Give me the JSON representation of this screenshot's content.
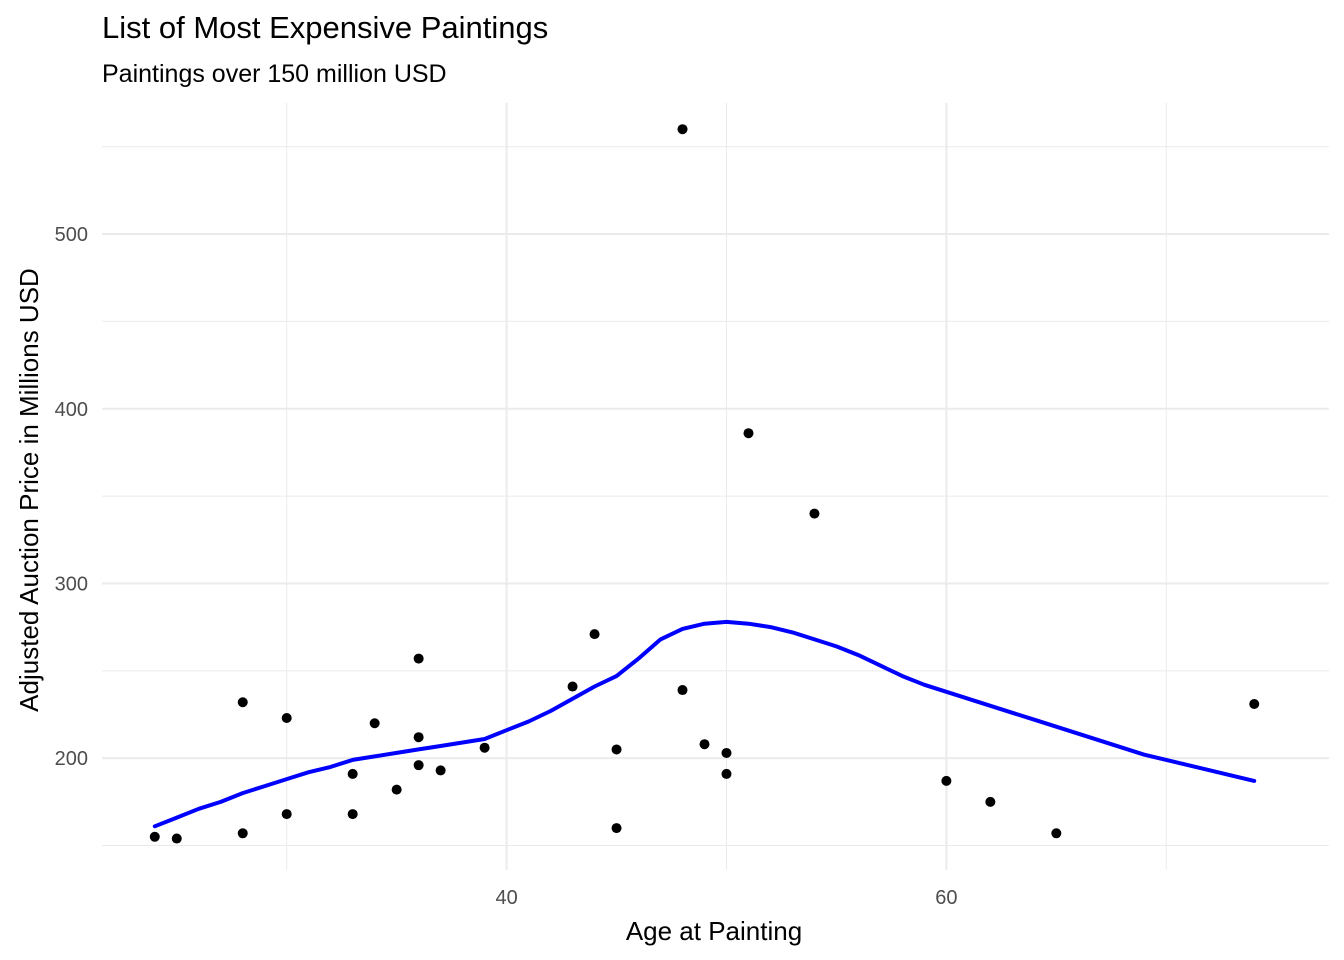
{
  "chart_data": {
    "type": "scatter",
    "title": "List of Most Expensive Paintings",
    "subtitle": "Paintings over 150 million USD",
    "xlabel": "Age at Painting",
    "ylabel": "Adjusted Auction Price in Millions USD",
    "xlim": [
      21.6,
      77.4
    ],
    "ylim": [
      136,
      575
    ],
    "x_major_ticks": [
      40,
      60
    ],
    "x_minor_ticks": [
      30,
      50,
      70
    ],
    "y_major_ticks": [
      200,
      300,
      400,
      500
    ],
    "y_minor_ticks": [
      150,
      250,
      350,
      450,
      550
    ],
    "grid": true,
    "points": [
      {
        "x": 24,
        "y": 155
      },
      {
        "x": 25,
        "y": 154
      },
      {
        "x": 28,
        "y": 157
      },
      {
        "x": 28,
        "y": 232
      },
      {
        "x": 30,
        "y": 168
      },
      {
        "x": 30,
        "y": 223
      },
      {
        "x": 33,
        "y": 168
      },
      {
        "x": 33,
        "y": 191
      },
      {
        "x": 34,
        "y": 220
      },
      {
        "x": 35,
        "y": 182
      },
      {
        "x": 36,
        "y": 196
      },
      {
        "x": 36,
        "y": 212
      },
      {
        "x": 36,
        "y": 257
      },
      {
        "x": 37,
        "y": 193
      },
      {
        "x": 39,
        "y": 206
      },
      {
        "x": 43,
        "y": 241
      },
      {
        "x": 44,
        "y": 271
      },
      {
        "x": 45,
        "y": 160
      },
      {
        "x": 45,
        "y": 205
      },
      {
        "x": 48,
        "y": 239
      },
      {
        "x": 48,
        "y": 560
      },
      {
        "x": 49,
        "y": 208
      },
      {
        "x": 50,
        "y": 191
      },
      {
        "x": 50,
        "y": 203
      },
      {
        "x": 51,
        "y": 386
      },
      {
        "x": 54,
        "y": 340
      },
      {
        "x": 60,
        "y": 187
      },
      {
        "x": 62,
        "y": 175
      },
      {
        "x": 65,
        "y": 157
      },
      {
        "x": 74,
        "y": 231
      }
    ],
    "smooth_line": {
      "color": "#0000ff",
      "points": [
        {
          "x": 24,
          "y": 161
        },
        {
          "x": 25,
          "y": 166
        },
        {
          "x": 26,
          "y": 171
        },
        {
          "x": 27,
          "y": 175
        },
        {
          "x": 28,
          "y": 180
        },
        {
          "x": 29,
          "y": 184
        },
        {
          "x": 30,
          "y": 188
        },
        {
          "x": 31,
          "y": 192
        },
        {
          "x": 32,
          "y": 195
        },
        {
          "x": 33,
          "y": 199
        },
        {
          "x": 34,
          "y": 201
        },
        {
          "x": 35,
          "y": 203
        },
        {
          "x": 36,
          "y": 205
        },
        {
          "x": 37,
          "y": 207
        },
        {
          "x": 38,
          "y": 209
        },
        {
          "x": 39,
          "y": 211
        },
        {
          "x": 40,
          "y": 216
        },
        {
          "x": 41,
          "y": 221
        },
        {
          "x": 42,
          "y": 227
        },
        {
          "x": 43,
          "y": 234
        },
        {
          "x": 44,
          "y": 241
        },
        {
          "x": 45,
          "y": 247
        },
        {
          "x": 46,
          "y": 257
        },
        {
          "x": 47,
          "y": 268
        },
        {
          "x": 48,
          "y": 274
        },
        {
          "x": 49,
          "y": 277
        },
        {
          "x": 50,
          "y": 278
        },
        {
          "x": 51,
          "y": 277
        },
        {
          "x": 52,
          "y": 275
        },
        {
          "x": 53,
          "y": 272
        },
        {
          "x": 54,
          "y": 268
        },
        {
          "x": 55,
          "y": 264
        },
        {
          "x": 56,
          "y": 259
        },
        {
          "x": 57,
          "y": 253
        },
        {
          "x": 58,
          "y": 247
        },
        {
          "x": 59,
          "y": 242
        },
        {
          "x": 60,
          "y": 238
        },
        {
          "x": 61,
          "y": 234
        },
        {
          "x": 62,
          "y": 230
        },
        {
          "x": 63,
          "y": 226
        },
        {
          "x": 64,
          "y": 222
        },
        {
          "x": 65,
          "y": 218
        },
        {
          "x": 66,
          "y": 214
        },
        {
          "x": 67,
          "y": 210
        },
        {
          "x": 68,
          "y": 206
        },
        {
          "x": 69,
          "y": 202
        },
        {
          "x": 70,
          "y": 199
        },
        {
          "x": 71,
          "y": 196
        },
        {
          "x": 72,
          "y": 193
        },
        {
          "x": 73,
          "y": 190
        },
        {
          "x": 74,
          "y": 187
        }
      ]
    },
    "point_color": "#000000",
    "grid_color": "#ebebeb"
  }
}
